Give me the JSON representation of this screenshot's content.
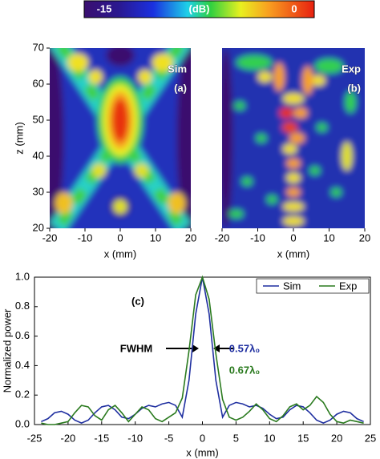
{
  "chart_data": [
    {
      "type": "colorbar",
      "label": "(dB)",
      "clim": [
        -15,
        0
      ],
      "ticks": [
        -15,
        0
      ]
    },
    {
      "type": "heatmap",
      "annotations": [
        "Sim",
        "(a)"
      ],
      "xlabel": "x (mm)",
      "ylabel": "z (mm)",
      "xlim": [
        -20,
        20
      ],
      "ylim": [
        20,
        70
      ],
      "xticks": [
        -20,
        -10,
        0,
        10,
        20
      ],
      "yticks": [
        20,
        30,
        40,
        50,
        60,
        70
      ]
    },
    {
      "type": "heatmap",
      "annotations": [
        "Exp",
        "(b)"
      ],
      "xlabel": "x (mm)",
      "xlim": [
        -20,
        20
      ],
      "ylim": [
        20,
        70
      ],
      "xticks": [
        -20,
        -10,
        0,
        10,
        20
      ]
    },
    {
      "type": "line",
      "xlabel": "x (mm)",
      "ylabel": "Normalized power",
      "annotations": [
        "(c)",
        "FWHM",
        "0.57λ₀",
        "0.67λ₀"
      ],
      "x": [
        -24,
        -23,
        -22,
        -21,
        -20,
        -19,
        -18,
        -17,
        -16,
        -15,
        -14,
        -13,
        -12,
        -11,
        -10,
        -9,
        -8,
        -7,
        -6,
        -5,
        -4,
        -3,
        -2,
        -1,
        0,
        1,
        2,
        3,
        4,
        5,
        6,
        7,
        8,
        9,
        10,
        11,
        12,
        13,
        14,
        15,
        16,
        17,
        18,
        19,
        20,
        21,
        22,
        23,
        24
      ],
      "series": [
        {
          "name": "Sim",
          "color": "#1f2fa0",
          "values": [
            0.02,
            0.04,
            0.08,
            0.09,
            0.07,
            0.03,
            0.01,
            0.03,
            0.08,
            0.12,
            0.13,
            0.1,
            0.05,
            0.04,
            0.07,
            0.11,
            0.13,
            0.12,
            0.14,
            0.15,
            0.13,
            0.05,
            0.3,
            0.75,
            1.0,
            0.75,
            0.3,
            0.05,
            0.13,
            0.15,
            0.14,
            0.12,
            0.13,
            0.11,
            0.07,
            0.04,
            0.05,
            0.1,
            0.13,
            0.12,
            0.08,
            0.03,
            0.01,
            0.03,
            0.07,
            0.09,
            0.08,
            0.04,
            0.02
          ]
        },
        {
          "name": "Exp",
          "color": "#2a7a1e",
          "values": [
            0.01,
            0.0,
            0.0,
            0.01,
            0.02,
            0.08,
            0.13,
            0.12,
            0.06,
            0.03,
            0.1,
            0.13,
            0.08,
            0.02,
            0.07,
            0.12,
            0.1,
            0.04,
            0.02,
            0.05,
            0.08,
            0.18,
            0.5,
            0.88,
            1.0,
            0.85,
            0.48,
            0.17,
            0.05,
            0.03,
            0.05,
            0.09,
            0.14,
            0.1,
            0.04,
            0.02,
            0.06,
            0.12,
            0.14,
            0.1,
            0.13,
            0.19,
            0.15,
            0.07,
            0.02,
            0.01,
            0.03,
            0.02,
            0.01
          ]
        }
      ],
      "xlim": [
        -25,
        25
      ],
      "xticks": [
        -25,
        -20,
        -15,
        -10,
        -5,
        0,
        5,
        10,
        15,
        20,
        25
      ],
      "ylim": [
        0,
        1
      ],
      "yticks": [
        {
          "value": 0,
          "label": "0.0"
        },
        {
          "value": 0.2,
          "label": "0.2"
        },
        {
          "value": 0.4,
          "label": "0.4"
        },
        {
          "value": 0.6,
          "label": "0.6"
        },
        {
          "value": 0.8,
          "label": "0.8"
        },
        {
          "value": 1,
          "label": "1.0"
        }
      ],
      "legend": "upper right"
    }
  ]
}
